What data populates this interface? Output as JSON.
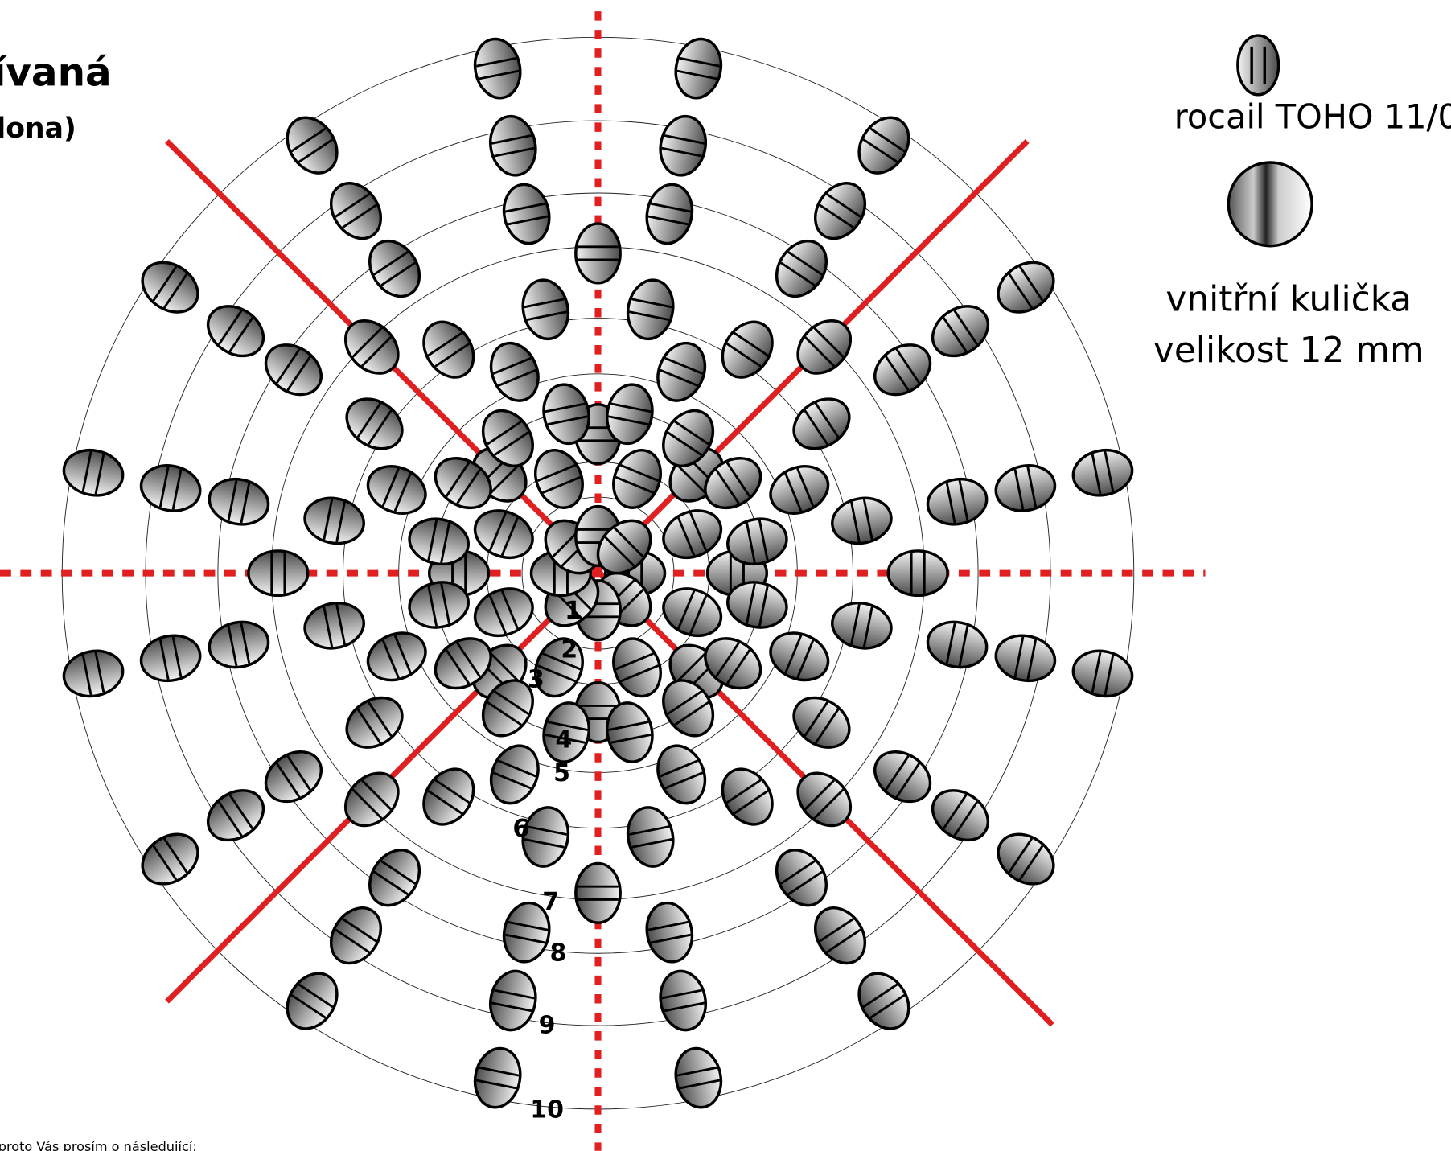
{
  "header": {
    "title": "ívaná",
    "subtitle": "lona)"
  },
  "legend": {
    "bead": "rocail TOHO 11/0",
    "ball_line1": "vnitřní kulička",
    "ball_line2": "velikost 12 mm"
  },
  "ring_labels": [
    "1",
    "2",
    "3",
    "4",
    "5",
    "6",
    "7",
    "8",
    "9",
    "10"
  ],
  "footer": "proto Vás prosím o následující:"
}
